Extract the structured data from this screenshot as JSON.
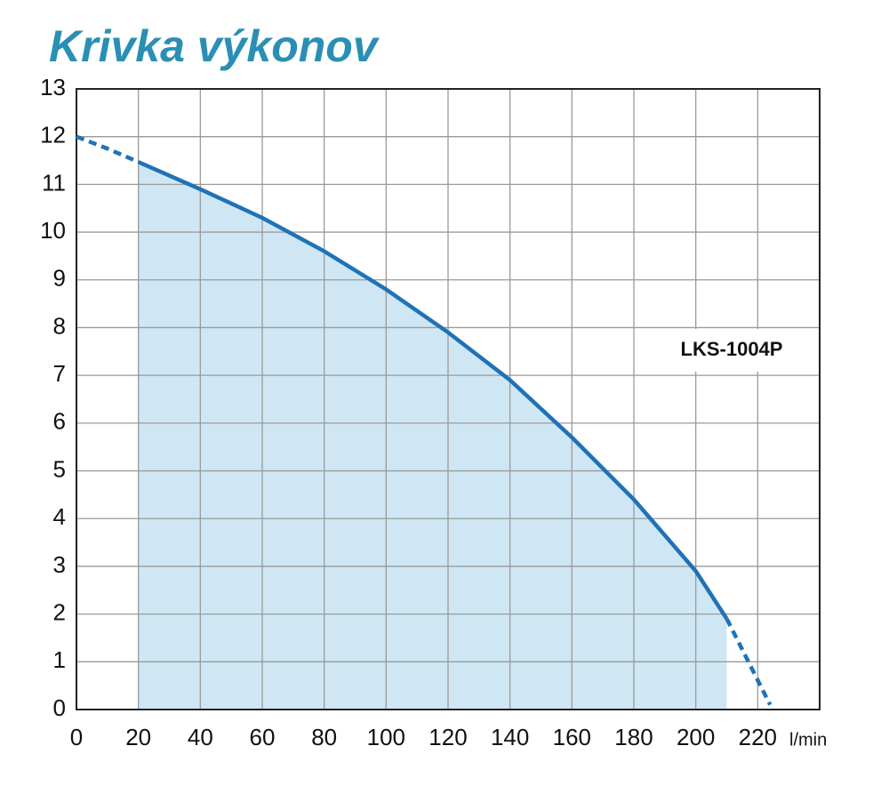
{
  "chart_data": {
    "type": "line",
    "title": "Krivka výkonov",
    "x_unit": "l/min",
    "label": "LKS-1004P",
    "series": [
      {
        "color": "#1f72b8",
        "dashed": true,
        "x": [
          0,
          10,
          20
        ],
        "values": [
          12,
          11.75,
          11.47
        ]
      },
      {
        "name": "LKS-1004P",
        "color": "#1f72b8",
        "fill": "#cfe7f4",
        "dashed": false,
        "x": [
          20,
          40,
          60,
          80,
          100,
          120,
          140,
          160,
          180,
          200,
          210
        ],
        "values": [
          11.47,
          10.9,
          10.3,
          9.6,
          8.8,
          7.9,
          6.9,
          5.7,
          4.4,
          2.9,
          1.9
        ]
      },
      {
        "color": "#1f72b8",
        "dashed": true,
        "x": [
          210,
          217,
          224
        ],
        "values": [
          1.9,
          1.0,
          0.1
        ]
      }
    ],
    "xlim": [
      0,
      240
    ],
    "xticks": [
      0,
      20,
      40,
      60,
      80,
      100,
      120,
      140,
      160,
      180,
      200,
      220
    ],
    "ylim": [
      0,
      13
    ],
    "yticks": [
      0,
      1,
      2,
      3,
      4,
      5,
      6,
      7,
      8,
      9,
      10,
      11,
      12,
      13
    ],
    "grid": true
  }
}
